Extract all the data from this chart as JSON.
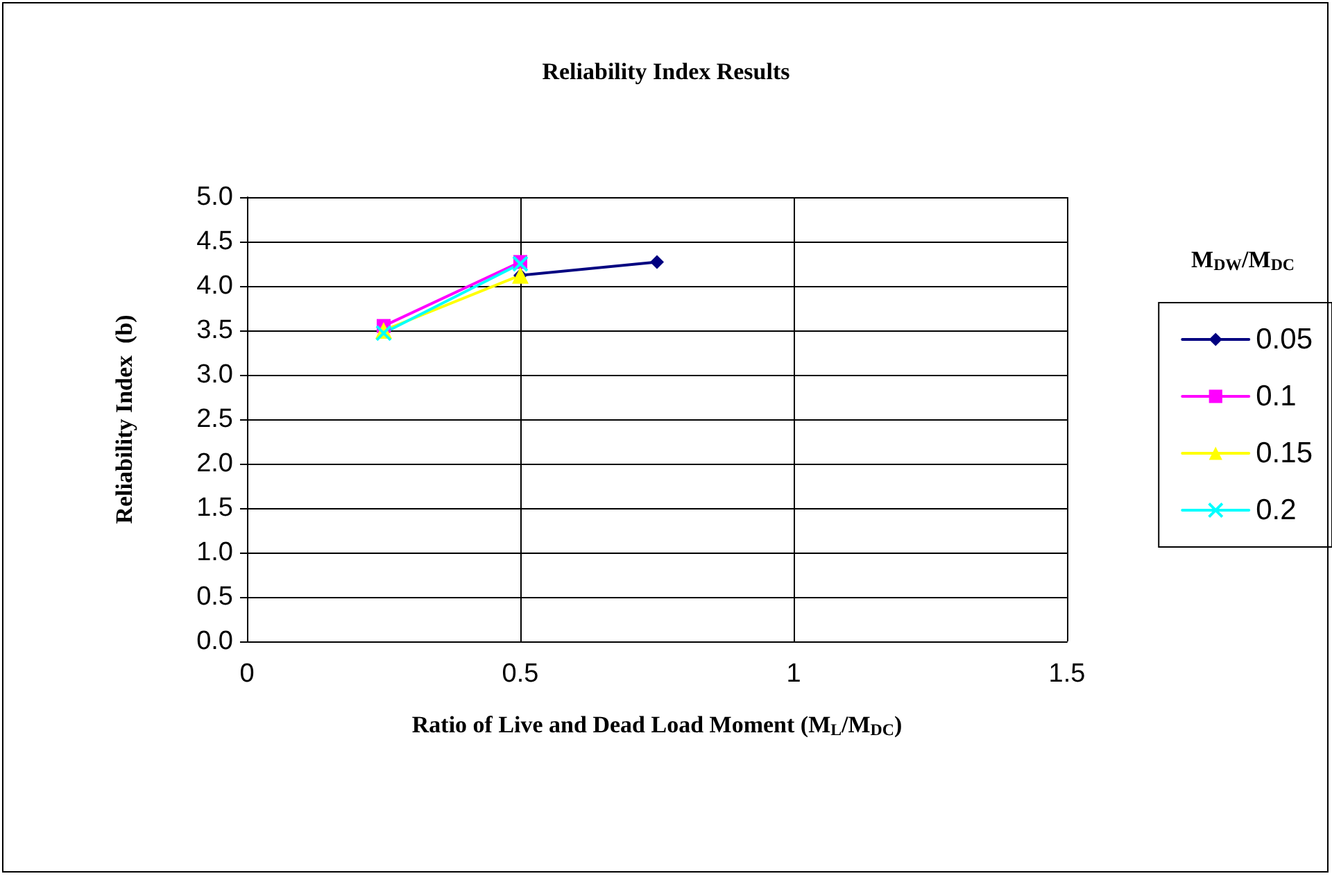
{
  "chart_data": {
    "type": "line",
    "title": "Reliability Index Results",
    "xlabel": "Ratio of Live and Dead Load Moment (M$_{L}$/M$_{DC}$)",
    "ylabel": "Reliability Index  (b)",
    "legend_title": "M$_{DW}$/M$_{DC}$",
    "x": [
      0.25,
      0.5,
      0.75
    ],
    "series": [
      {
        "name": "0.05",
        "color": "#000080",
        "marker": "diamond",
        "values": [
          null,
          4.12,
          4.27
        ]
      },
      {
        "name": "0.1",
        "color": "#ff00ff",
        "marker": "square",
        "values": [
          3.55,
          4.27,
          null
        ]
      },
      {
        "name": "0.15",
        "color": "#ffff00",
        "marker": "triangle",
        "values": [
          3.5,
          4.12,
          null
        ]
      },
      {
        "name": "0.2",
        "color": "#00ffff",
        "marker": "cross",
        "values": [
          3.47,
          4.25,
          null
        ]
      }
    ],
    "xlim": [
      0,
      1.5
    ],
    "xticks": [
      0,
      0.5,
      1,
      1.5
    ],
    "ylim": [
      0,
      5
    ],
    "yticks": [
      {
        "value": 0,
        "label": "0.0"
      },
      {
        "value": 0.5,
        "label": "0.5"
      },
      {
        "value": 1,
        "label": "1.0"
      },
      {
        "value": 1.5,
        "label": "1.5"
      },
      {
        "value": 2,
        "label": "2.0"
      },
      {
        "value": 2.5,
        "label": "2.5"
      },
      {
        "value": 3,
        "label": "3.0"
      },
      {
        "value": 3.5,
        "label": "3.5"
      },
      {
        "value": 4,
        "label": "4.0"
      },
      {
        "value": 4.5,
        "label": "4.5"
      },
      {
        "value": 5,
        "label": "5.0"
      }
    ],
    "grid": true,
    "legend": "right",
    "line_style": "solid"
  }
}
